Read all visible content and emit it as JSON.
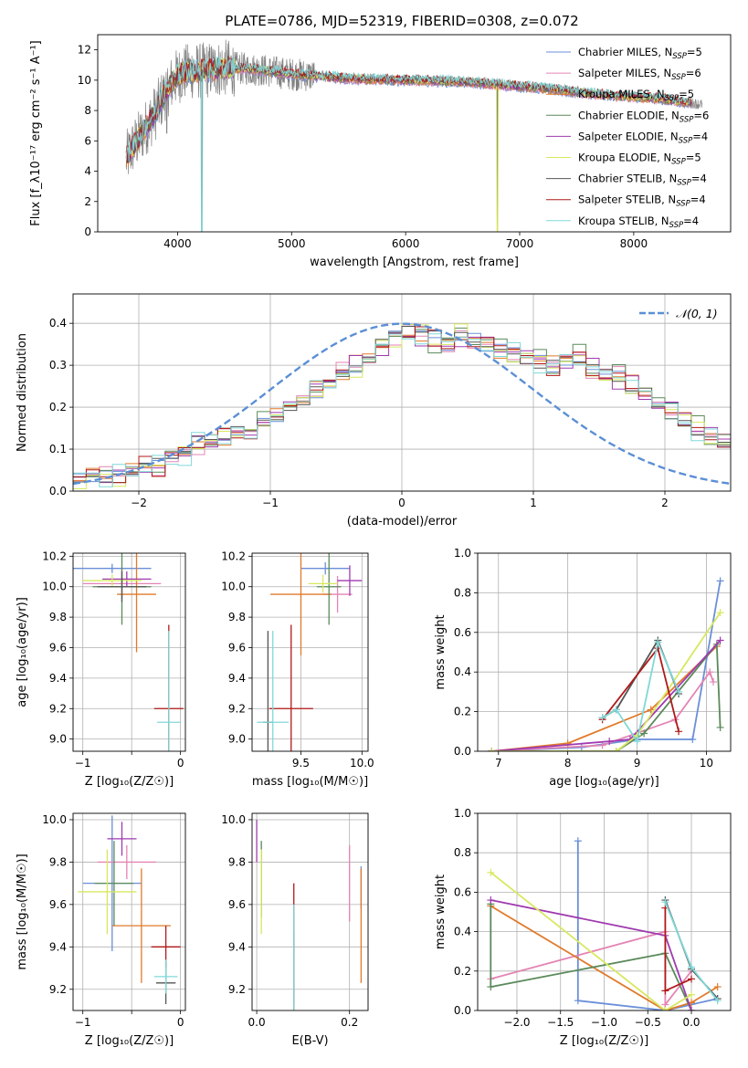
{
  "page_title": "PLATE=0786, MJD=52319, FIBERID=0308, z=0.072",
  "colors": {
    "chabrier_miles": "#6a8fd8",
    "salpeter_miles": "#e484b4",
    "kroupa_miles": "#e07a2a",
    "chabrier_elodie": "#5a8a5a",
    "salpeter_elodie": "#a03ab0",
    "kroupa_elodie": "#d8e860",
    "chabrier_stelib": "#555555",
    "salpeter_stelib": "#b01818",
    "kroupa_stelib": "#80d8d8",
    "data": "#808080",
    "normal_curve": "#5b8fd6",
    "grid": "#b0b0b0"
  },
  "chart_data": [
    {
      "id": "spectrum",
      "type": "line",
      "xlabel": "wavelength [Angstrom, rest frame]",
      "ylabel": "Flux [f_λ10⁻¹⁷ erg cm⁻² s⁻¹ A⁻¹]",
      "xlim": [
        3300,
        8850
      ],
      "ylim": [
        0,
        13
      ],
      "xticks": [
        4000,
        5000,
        6000,
        7000,
        8000
      ],
      "yticks": [
        0,
        2,
        4,
        6,
        8,
        10,
        12
      ],
      "grid": false,
      "legend_position": "right",
      "legend": [
        {
          "label": "Chabrier MILES, N",
          "sub": "SSP",
          "tail": "=5",
          "color": "#6a8fd8"
        },
        {
          "label": "Salpeter MILES, N",
          "sub": "SSP",
          "tail": "=6",
          "color": "#e484b4"
        },
        {
          "label": "Kroupa MILES, N",
          "sub": "SSP",
          "tail": "=5",
          "color": "#e07a2a"
        },
        {
          "label": "Chabrier ELODIE, N",
          "sub": "SSP",
          "tail": "=6",
          "color": "#5a8a5a"
        },
        {
          "label": "Salpeter ELODIE, N",
          "sub": "SSP",
          "tail": "=4",
          "color": "#a03ab0"
        },
        {
          "label": "Kroupa ELODIE, N",
          "sub": "SSP",
          "tail": "=5",
          "color": "#d8e860"
        },
        {
          "label": "Chabrier STELIB, N",
          "sub": "SSP",
          "tail": "=4",
          "color": "#555555"
        },
        {
          "label": "Salpeter STELIB, N",
          "sub": "SSP",
          "tail": "=4",
          "color": "#b01818"
        },
        {
          "label": "Kroupa STELIB, N",
          "sub": "SSP",
          "tail": "=4",
          "color": "#80d8d8"
        }
      ],
      "continuum": {
        "x": [
          3550,
          3600,
          3700,
          3800,
          3900,
          4000,
          4100,
          4200,
          4300,
          4400,
          4500,
          4700,
          5000,
          5500,
          6000,
          6500,
          7000,
          7300,
          7500,
          7800,
          8000,
          8200,
          8400,
          8600
        ],
        "y": [
          4.8,
          5.5,
          6.6,
          7.8,
          9.3,
          10.3,
          10.6,
          10.6,
          10.7,
          10.8,
          10.8,
          10.7,
          10.4,
          10.1,
          10.0,
          9.9,
          9.6,
          9.4,
          9.2,
          9.0,
          8.9,
          8.8,
          8.6,
          8.4
        ]
      },
      "models_xrange": [
        3550,
        8510
      ],
      "data_xrange": [
        3550,
        8600
      ]
    },
    {
      "id": "residuals",
      "type": "histogram",
      "xlabel": "(data-model)/error",
      "ylabel": "Normed distribution",
      "xlim": [
        -2.5,
        2.5
      ],
      "ylim": [
        0,
        0.47
      ],
      "xticks": [
        -2,
        -1,
        0,
        1,
        2
      ],
      "xticklabels": [
        "−2",
        "−1",
        "0",
        "1",
        "2"
      ],
      "yticks": [
        0,
        0.1,
        0.2,
        0.3,
        0.4
      ],
      "yticklabels": [
        "0.0",
        "0.1",
        "0.2",
        "0.3",
        "0.4"
      ],
      "grid": true,
      "legend_position": "top-right",
      "legend": [
        {
          "label": "𝒩(0, 1)",
          "color": "#5b8fd6"
        }
      ],
      "bin_edges_start": -2.5,
      "bin_width": 0.1,
      "base_profile": [
        0.03,
        0.04,
        0.04,
        0.04,
        0.05,
        0.06,
        0.06,
        0.08,
        0.09,
        0.11,
        0.12,
        0.13,
        0.14,
        0.14,
        0.16,
        0.18,
        0.2,
        0.22,
        0.24,
        0.26,
        0.28,
        0.3,
        0.32,
        0.35,
        0.37,
        0.38,
        0.37,
        0.36,
        0.35,
        0.37,
        0.36,
        0.35,
        0.34,
        0.33,
        0.32,
        0.31,
        0.3,
        0.31,
        0.32,
        0.29,
        0.28,
        0.27,
        0.25,
        0.23,
        0.21,
        0.19,
        0.17,
        0.15,
        0.13,
        0.12,
        0.1,
        0.09,
        0.07,
        0.06,
        0.05,
        0.05,
        0.04,
        0.04,
        0.03,
        0.03
      ],
      "series_offsets": [
        0.0,
        0.01,
        -0.012,
        0.015,
        -0.01,
        0.012,
        -0.005,
        0.008,
        -0.015
      ]
    },
    {
      "id": "age_vs_Z",
      "type": "errorbar",
      "xlabel": "Z [log₁₀(Z/Z☉)]",
      "ylabel": "age  [log₁₀(age/yr)]",
      "xlim": [
        -1.1,
        0.05
      ],
      "ylim": [
        8.92,
        10.22
      ],
      "xticks": [
        -1,
        -0.5,
        0
      ],
      "xticklabels": [
        "−1",
        "",
        "0"
      ],
      "yticks": [
        9.0,
        9.2,
        9.4,
        9.6,
        9.8,
        10.0,
        10.2
      ],
      "yticklabels": [
        "9.0",
        "9.2",
        "9.4",
        "9.6",
        "9.8",
        "10.0",
        "10.2"
      ],
      "grid": true,
      "points": [
        {
          "x": -0.7,
          "xerr": 0.4,
          "y": 10.12,
          "yerr": 0.03,
          "color": "#6a8fd8"
        },
        {
          "x": -0.6,
          "xerr": 0.4,
          "y": 10.02,
          "yerr": 0.1,
          "color": "#e484b4"
        },
        {
          "x": -0.45,
          "xerr": 0.2,
          "y": 9.95,
          "yerr": 0.38,
          "color": "#e07a2a"
        },
        {
          "x": -0.6,
          "xerr": 0.3,
          "y": 10.0,
          "yerr": 0.25,
          "color": "#5a8a5a"
        },
        {
          "x": -0.55,
          "xerr": 0.25,
          "y": 10.05,
          "yerr": 0.05,
          "color": "#a03ab0"
        },
        {
          "x": -0.7,
          "xerr": 0.3,
          "y": 10.04,
          "yerr": 0.04,
          "color": "#d8e860"
        },
        {
          "x": -0.6,
          "xerr": 0.25,
          "y": 10.0,
          "yerr": 0.1,
          "color": "#555555"
        },
        {
          "x": -0.12,
          "xerr": 0.15,
          "y": 9.2,
          "yerr": 0.55,
          "color": "#b01818"
        },
        {
          "x": -0.12,
          "xerr": 0.12,
          "y": 9.11,
          "yerr": 0.6,
          "color": "#80d8d8"
        }
      ]
    },
    {
      "id": "age_vs_mass",
      "type": "errorbar",
      "xlabel": "mass [log₁₀(M/M☉)]",
      "xlim": [
        9.1,
        10.05
      ],
      "ylim": [
        8.92,
        10.22
      ],
      "xticks": [
        9.5,
        10.0
      ],
      "xticklabels": [
        "9.5",
        "10.0"
      ],
      "yticks": [
        9.0,
        9.2,
        9.4,
        9.6,
        9.8,
        10.0,
        10.2
      ],
      "yticklabels": [
        "9.0",
        "9.2",
        "9.4",
        "9.6",
        "9.8",
        "10.0",
        "10.2"
      ],
      "grid": true,
      "points": [
        {
          "x": 9.7,
          "xerr": 0.2,
          "y": 10.12,
          "yerr": 0.04,
          "color": "#6a8fd8"
        },
        {
          "x": 9.8,
          "xerr": 0.12,
          "y": 9.95,
          "yerr": 0.12,
          "color": "#e484b4"
        },
        {
          "x": 9.5,
          "xerr": 0.25,
          "y": 9.95,
          "yerr": 0.4,
          "color": "#e07a2a"
        },
        {
          "x": 9.73,
          "xerr": 0.1,
          "y": 10.0,
          "yerr": 0.25,
          "color": "#5a8a5a"
        },
        {
          "x": 9.9,
          "xerr": 0.1,
          "y": 10.04,
          "yerr": 0.1,
          "color": "#a03ab0"
        },
        {
          "x": 9.68,
          "xerr": 0.12,
          "y": 10.02,
          "yerr": 0.06,
          "color": "#d8e860"
        },
        {
          "x": 9.23,
          "xerr": 0.04,
          "y": 9.11,
          "yerr": 0.6,
          "color": "#555555"
        },
        {
          "x": 9.42,
          "xerr": 0.18,
          "y": 9.2,
          "yerr": 0.55,
          "color": "#b01818"
        },
        {
          "x": 9.27,
          "xerr": 0.13,
          "y": 9.11,
          "yerr": 0.6,
          "color": "#80d8d8"
        }
      ]
    },
    {
      "id": "weight_vs_age",
      "type": "line",
      "xlabel": "age  [log₁₀(age/yr)]",
      "ylabel": "mass weight",
      "xlim": [
        6.7,
        10.35
      ],
      "ylim": [
        0,
        1.0
      ],
      "xticks": [
        7,
        8,
        9,
        10
      ],
      "yticks": [
        0,
        0.2,
        0.4,
        0.6,
        0.8,
        1.0
      ],
      "yticklabels": [
        "0.0",
        "0.2",
        "0.4",
        "0.6",
        "0.8",
        "1.0"
      ],
      "grid": true,
      "series": [
        {
          "color": "#6a8fd8",
          "x": [
            6.9,
            8.2,
            9.0,
            9.8,
            10.2
          ],
          "y": [
            0.0,
            0.02,
            0.06,
            0.06,
            0.86
          ]
        },
        {
          "color": "#e484b4",
          "x": [
            6.9,
            8.5,
            9.55,
            10.05,
            10.1
          ],
          "y": [
            0.0,
            0.03,
            0.16,
            0.4,
            0.35
          ]
        },
        {
          "color": "#e07a2a",
          "x": [
            6.9,
            8.0,
            9.2,
            10.15
          ],
          "y": [
            0.0,
            0.04,
            0.21,
            0.53
          ]
        },
        {
          "color": "#5a8a5a",
          "x": [
            6.9,
            8.7,
            9.1,
            10.15,
            10.2
          ],
          "y": [
            0.0,
            0.0,
            0.09,
            0.54,
            0.12
          ]
        },
        {
          "color": "#a03ab0",
          "x": [
            6.9,
            8.6,
            8.9,
            10.2
          ],
          "y": [
            0.0,
            0.05,
            0.06,
            0.56
          ]
        },
        {
          "color": "#d8e860",
          "x": [
            6.9,
            8.7,
            9.0,
            10.2
          ],
          "y": [
            0.0,
            0.0,
            0.08,
            0.7
          ]
        },
        {
          "color": "#555555",
          "x": [
            8.5,
            8.7,
            9.3,
            9.6
          ],
          "y": [
            0.17,
            0.21,
            0.56,
            0.29
          ]
        },
        {
          "color": "#b01818",
          "x": [
            8.5,
            9.3,
            9.6
          ],
          "y": [
            0.16,
            0.52,
            0.1
          ]
        },
        {
          "color": "#80d8d8",
          "x": [
            8.5,
            8.7,
            9.0,
            9.3,
            9.6
          ],
          "y": [
            0.17,
            0.21,
            0.05,
            0.55,
            0.3
          ]
        }
      ]
    },
    {
      "id": "mass_vs_Z",
      "type": "errorbar",
      "xlabel": "Z [log₁₀(Z/Z☉)]",
      "ylabel": "mass [log₁₀(M/M☉)]",
      "xlim": [
        -1.1,
        0.05
      ],
      "ylim": [
        9.1,
        10.03
      ],
      "xticks": [
        -1,
        -0.5,
        0
      ],
      "xticklabels": [
        "−1",
        "",
        "0"
      ],
      "yticks": [
        9.2,
        9.4,
        9.6,
        9.8,
        10.0
      ],
      "yticklabels": [
        "9.2",
        "9.4",
        "9.6",
        "9.8",
        "10.0"
      ],
      "grid": true,
      "points": [
        {
          "x": -0.7,
          "xerr": 0.3,
          "y": 9.7,
          "yerr": 0.32,
          "color": "#6a8fd8"
        },
        {
          "x": -0.55,
          "xerr": 0.3,
          "y": 9.8,
          "yerr": 0.08,
          "color": "#e484b4"
        },
        {
          "x": -0.4,
          "xerr": 0.3,
          "y": 9.5,
          "yerr": 0.27,
          "color": "#e07a2a"
        },
        {
          "x": -0.68,
          "xerr": 0.2,
          "y": 9.7,
          "yerr": 0.2,
          "color": "#5a8a5a"
        },
        {
          "x": -0.6,
          "xerr": 0.15,
          "y": 9.91,
          "yerr": 0.08,
          "color": "#a03ab0"
        },
        {
          "x": -0.75,
          "xerr": 0.3,
          "y": 9.66,
          "yerr": 0.2,
          "color": "#d8e860"
        },
        {
          "x": -0.15,
          "xerr": 0.1,
          "y": 9.23,
          "yerr": 0.1,
          "color": "#555555"
        },
        {
          "x": -0.15,
          "xerr": 0.15,
          "y": 9.4,
          "yerr": 0.1,
          "color": "#b01818"
        },
        {
          "x": -0.15,
          "xerr": 0.12,
          "y": 9.26,
          "yerr": 0.08,
          "color": "#80d8d8"
        }
      ]
    },
    {
      "id": "mass_vs_EBV",
      "type": "errorbar",
      "xlabel": "E(B-V)",
      "xlim": [
        -0.01,
        0.24
      ],
      "ylim": [
        9.1,
        10.03
      ],
      "xticks": [
        0.0,
        0.2
      ],
      "xticklabels": [
        "0.0",
        "0.2"
      ],
      "yticks": [
        9.2,
        9.4,
        9.6,
        9.8,
        10.0
      ],
      "yticklabels": [
        "9.2",
        "9.4",
        "9.6",
        "9.8",
        "10.0"
      ],
      "grid": true,
      "points": [
        {
          "x": 0.225,
          "xerr": 0.0,
          "y": 9.68,
          "yerr": 0.1,
          "color": "#6a8fd8"
        },
        {
          "x": 0.2,
          "xerr": 0.0,
          "y": 9.7,
          "yerr": 0.18,
          "color": "#e484b4"
        },
        {
          "x": 0.225,
          "xerr": 0.0,
          "y": 9.5,
          "yerr": 0.27,
          "color": "#e07a2a"
        },
        {
          "x": 0.01,
          "xerr": 0.0,
          "y": 9.72,
          "yerr": 0.18,
          "color": "#5a8a5a"
        },
        {
          "x": 0.0,
          "xerr": 0.0,
          "y": 9.9,
          "yerr": 0.1,
          "color": "#a03ab0"
        },
        {
          "x": 0.01,
          "xerr": 0.0,
          "y": 9.66,
          "yerr": 0.2,
          "color": "#d8e860"
        },
        {
          "x": 0.08,
          "xerr": 0.0,
          "y": 9.3,
          "yerr": 0.17,
          "color": "#555555"
        },
        {
          "x": 0.08,
          "xerr": 0.0,
          "y": 9.4,
          "yerr": 0.3,
          "color": "#b01818"
        },
        {
          "x": 0.08,
          "xerr": 0.0,
          "y": 9.35,
          "yerr": 0.25,
          "color": "#80d8d8"
        }
      ]
    },
    {
      "id": "weight_vs_Z",
      "type": "line",
      "xlabel": "Z [log₁₀(Z/Z☉)]",
      "ylabel": "mass weight",
      "xlim": [
        -2.45,
        0.45
      ],
      "ylim": [
        0,
        1.0
      ],
      "xticks": [
        -2.0,
        -1.5,
        -1.0,
        -0.5,
        0.0
      ],
      "xticklabels": [
        "−2.0",
        "−1.5",
        "−1.0",
        "−0.5",
        "0.0"
      ],
      "yticks": [
        0,
        0.2,
        0.4,
        0.6,
        0.8,
        1.0
      ],
      "yticklabels": [
        "0.0",
        "0.2",
        "0.4",
        "0.6",
        "0.8",
        "1.0"
      ],
      "grid": true,
      "series": [
        {
          "color": "#6a8fd8",
          "x": [
            -1.3,
            -1.3,
            -0.3,
            0.3
          ],
          "y": [
            0.86,
            0.05,
            0.0,
            0.06
          ]
        },
        {
          "color": "#e484b4",
          "x": [
            -2.3,
            -0.3,
            -0.3,
            0.0
          ],
          "y": [
            0.16,
            0.4,
            0.03,
            0.2
          ]
        },
        {
          "color": "#e07a2a",
          "x": [
            -2.3,
            -0.3,
            0.0,
            0.3
          ],
          "y": [
            0.53,
            0.0,
            0.04,
            0.12
          ]
        },
        {
          "color": "#5a8a5a",
          "x": [
            -2.3,
            -2.3,
            -0.3,
            0.0
          ],
          "y": [
            0.54,
            0.12,
            0.29,
            0.0
          ]
        },
        {
          "color": "#a03ab0",
          "x": [
            -2.3,
            -0.3,
            0.0
          ],
          "y": [
            0.56,
            0.38,
            0.0
          ]
        },
        {
          "color": "#d8e860",
          "x": [
            -2.3,
            -0.3,
            0.0
          ],
          "y": [
            0.7,
            0.0,
            0.08
          ]
        },
        {
          "color": "#555555",
          "x": [
            -0.3,
            0.0,
            0.3
          ],
          "y": [
            0.56,
            0.21,
            0.06
          ]
        },
        {
          "color": "#b01818",
          "x": [
            -0.3,
            -0.3,
            0.0
          ],
          "y": [
            0.52,
            0.1,
            0.16
          ]
        },
        {
          "color": "#80d8d8",
          "x": [
            -0.3,
            0.0,
            0.3
          ],
          "y": [
            0.55,
            0.22,
            0.05
          ]
        }
      ]
    }
  ]
}
